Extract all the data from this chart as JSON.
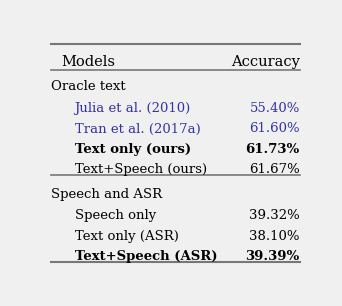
{
  "col_headers": [
    "Models",
    "Accuracy"
  ],
  "sections": [
    {
      "section_label": "Oracle text",
      "rows": [
        {
          "model": "Julia et al. (2010)",
          "accuracy": "55.40%",
          "bold": false,
          "blue": true
        },
        {
          "model": "Tran et al. (2017a)",
          "accuracy": "61.60%",
          "bold": false,
          "blue": true
        },
        {
          "model": "Text only (ours)",
          "accuracy": "61.73%",
          "bold": true,
          "blue": false
        },
        {
          "model": "Text+Speech (ours)",
          "accuracy": "61.67%",
          "bold": false,
          "blue": false
        }
      ]
    },
    {
      "section_label": "Speech and ASR",
      "rows": [
        {
          "model": "Speech only",
          "accuracy": "39.32%",
          "bold": false,
          "blue": false
        },
        {
          "model": "Text only (ASR)",
          "accuracy": "38.10%",
          "bold": false,
          "blue": false
        },
        {
          "model": "Text+Speech (ASR)",
          "accuracy": "39.39%",
          "bold": true,
          "blue": false
        }
      ]
    }
  ],
  "header_color": "#000000",
  "section_color": "#000000",
  "row_color": "#000000",
  "blue_color": "#3333aa",
  "bg_color": "#f0f0f0",
  "line_color": "#777777",
  "font_size": 9.5,
  "header_font_size": 10.5
}
